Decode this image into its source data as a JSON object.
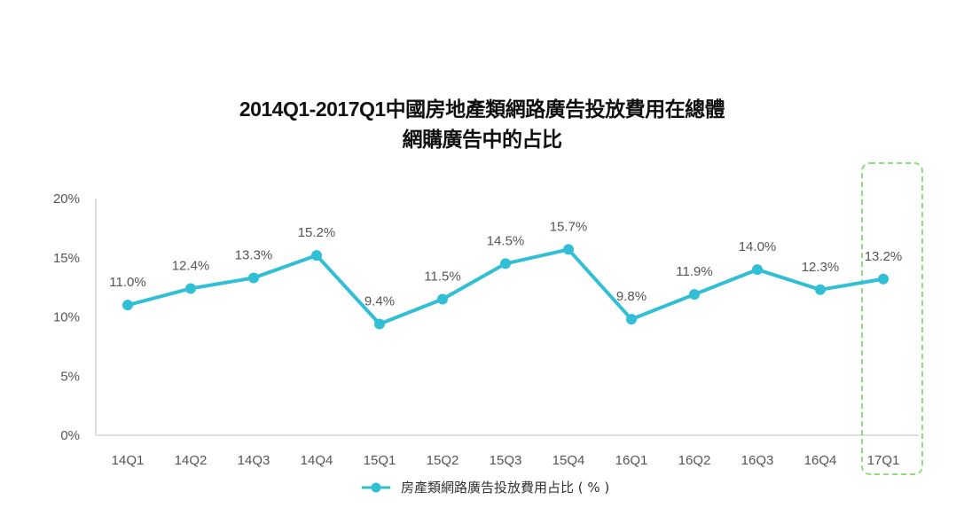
{
  "title_line1": "2014Q1-2017Q1中國房地產類網路廣告投放費用在總體",
  "title_line2": "網購廣告中的占比",
  "chart_data": {
    "type": "line",
    "title": "2014Q1-2017Q1中國房地產類網路廣告投放費用在總體網購廣告中的占比",
    "categories": [
      "14Q1",
      "14Q2",
      "14Q3",
      "14Q4",
      "15Q1",
      "15Q2",
      "15Q3",
      "15Q4",
      "16Q1",
      "16Q2",
      "16Q3",
      "16Q4",
      "17Q1"
    ],
    "series": [
      {
        "name": "房產類網路廣告投放費用占比（%）",
        "values": [
          11.0,
          12.4,
          13.3,
          15.2,
          9.4,
          11.5,
          14.5,
          15.7,
          9.8,
          11.9,
          14.0,
          12.3,
          13.2
        ],
        "labels": [
          "11.0%",
          "12.4%",
          "13.3%",
          "15.2%",
          "9.4%",
          "11.5%",
          "14.5%",
          "15.7%",
          "9.8%",
          "11.9%",
          "14.0%",
          "12.3%",
          "13.2%"
        ],
        "color": "#31bfd6"
      }
    ],
    "y_ticks": [
      {
        "value": 0,
        "label": "0%"
      },
      {
        "value": 5,
        "label": "5%"
      },
      {
        "value": 10,
        "label": "10%"
      },
      {
        "value": 15,
        "label": "15%"
      },
      {
        "value": 20,
        "label": "20%"
      }
    ],
    "ylim": [
      0,
      20
    ],
    "grid": false,
    "legend_position": "bottom-center",
    "highlight": {
      "category": "17Q1",
      "color": "#8fdc7e",
      "style": "dashed-rounded-box"
    }
  },
  "legend": {
    "label": "房產類網路廣告投放費用占比 ( % )"
  }
}
